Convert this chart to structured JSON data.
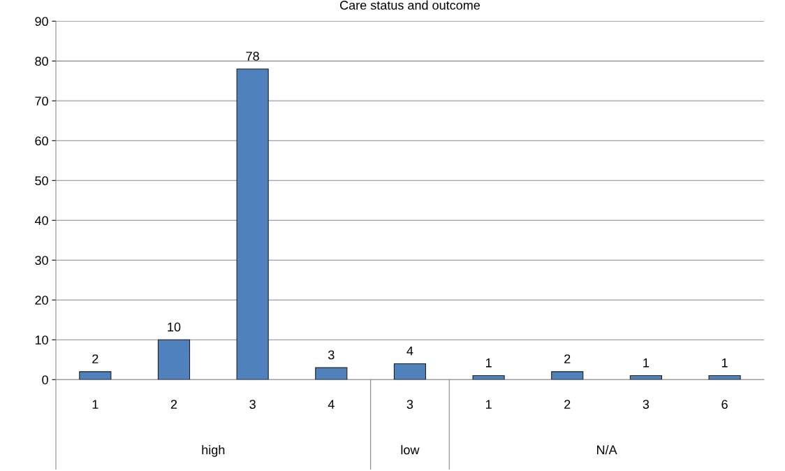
{
  "chart_data": {
    "type": "bar",
    "title": "Care status and outcome",
    "categories": [
      "1",
      "2",
      "3",
      "4",
      "3",
      "1",
      "2",
      "3",
      "6"
    ],
    "values": [
      2,
      10,
      78,
      3,
      4,
      1,
      2,
      1,
      1
    ],
    "color": "#4f81bd",
    "ylim": [
      0,
      90
    ],
    "yticks": [
      0,
      10,
      20,
      30,
      40,
      50,
      60,
      70,
      80,
      90
    ],
    "grid": "y",
    "data_labels": true,
    "legend": false,
    "annotations": [
      "high",
      "low",
      "N/A"
    ]
  }
}
